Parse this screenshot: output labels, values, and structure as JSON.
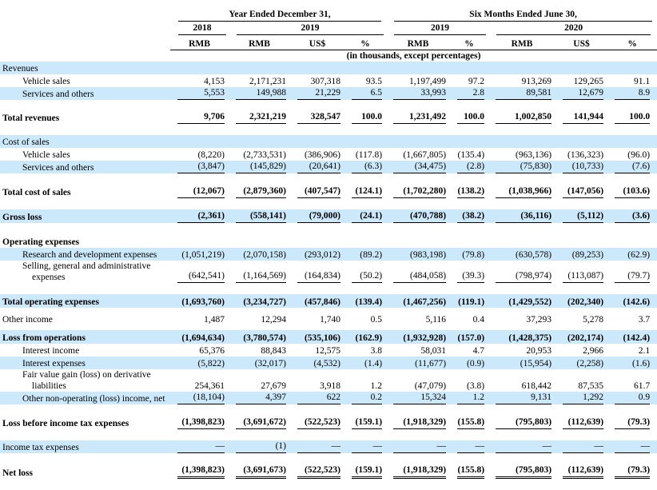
{
  "colors": {
    "highlight": "#cce9fb",
    "rule": "#000000",
    "text": "#000000"
  },
  "table": {
    "header": {
      "group1": "Year Ended December 31,",
      "group2": "Six Months Ended June 30,",
      "years": [
        "2018",
        "2019",
        "2019",
        "2020"
      ],
      "currencies": [
        "RMB",
        "RMB",
        "US$",
        "%",
        "RMB",
        "%",
        "RMB",
        "US$",
        "%"
      ],
      "note": "(in thousands, except percentages)"
    },
    "rows": [
      {
        "label": "Revenues",
        "hl": true
      },
      {
        "label": "Vehicle sales",
        "ind": 1,
        "cells": [
          "4,153",
          "2,171,231",
          "307,318",
          "93.5",
          "1,197,499",
          "97.2",
          "913,269",
          "129,265",
          "91.1"
        ]
      },
      {
        "label": "Services and others",
        "ind": 1,
        "hl": true,
        "u": "s",
        "cells": [
          "5,553",
          "149,988",
          "21,229",
          "6.5",
          "33,993",
          "2.8",
          "89,581",
          "12,679",
          "8.9"
        ]
      },
      {
        "spacer": 13
      },
      {
        "label": "Total revenues",
        "bold": true,
        "u": "s",
        "cells": [
          "9,706",
          "2,321,219",
          "328,547",
          "100.0",
          "1,231,492",
          "100.0",
          "1,002,850",
          "141,944",
          "100.0"
        ]
      },
      {
        "spacer": 14
      },
      {
        "label": "Cost of sales",
        "hl": true
      },
      {
        "label": "Vehicle sales",
        "ind": 1,
        "cells": [
          "(8,220)",
          "(2,733,531)",
          "(386,906)",
          "(117.8)",
          "(1,667,805)",
          "(135.4)",
          "(963,136)",
          "(136,323)",
          "(96.0)"
        ]
      },
      {
        "label": "Services and others",
        "ind": 1,
        "hl": true,
        "u": "s",
        "cells": [
          "(3,847)",
          "(145,829)",
          "(20,641)",
          "(6.3)",
          "(34,475)",
          "(2.8)",
          "(75,830)",
          "(10,733)",
          "(7.6)"
        ]
      },
      {
        "spacer": 14
      },
      {
        "label": "Total cost of sales",
        "bold": true,
        "u": "s",
        "cells": [
          "(12,067)",
          "(2,879,360)",
          "(407,547)",
          "(124.1)",
          "(1,702,280)",
          "(138.2)",
          "(1,038,966)",
          "(147,056)",
          "(103.6)"
        ]
      },
      {
        "spacer": 14
      },
      {
        "label": "Gross loss",
        "bold": true,
        "hl": true,
        "u": "s",
        "cells": [
          "(2,361)",
          "(558,141)",
          "(79,000)",
          "(24.1)",
          "(470,788)",
          "(38.2)",
          "(36,116)",
          "(5,112)",
          "(3.6)"
        ]
      },
      {
        "spacer": 14
      },
      {
        "label": "Operating expenses",
        "bold": true
      },
      {
        "label": "Research and development expenses",
        "ind": 1,
        "hl": true,
        "cells": [
          "(1,051,219)",
          "(2,070,158)",
          "(293,012)",
          "(89.2)",
          "(983,198)",
          "(79.8)",
          "(630,578)",
          "(89,253)",
          "(62.9)"
        ]
      },
      {
        "lines": [
          "Selling, general and administrative",
          "expenses"
        ],
        "ind": 1,
        "u": "s",
        "cells": [
          "(642,541)",
          "(1,164,569)",
          "(164,834)",
          "(50.2)",
          "(484,058)",
          "(39.3)",
          "(798,974)",
          "(113,087)",
          "(79.7)"
        ]
      },
      {
        "spacer": 14
      },
      {
        "label": "Total operating expenses",
        "bold": true,
        "hl": true,
        "cells": [
          "(1,693,760)",
          "(3,234,727)",
          "(457,846)",
          "(139.4)",
          "(1,467,256)",
          "(119.1)",
          "(1,429,552)",
          "(202,340)",
          "(142.6)"
        ]
      },
      {
        "spacer": 6
      },
      {
        "label": "Other income",
        "cells": [
          "1,487",
          "12,294",
          "1,740",
          "0.5",
          "5,116",
          "0.4",
          "37,293",
          "5,278",
          "3.7"
        ]
      },
      {
        "spacer": 6
      },
      {
        "label": "Loss from operations",
        "bold": true,
        "hl": true,
        "cells": [
          "(1,694,634)",
          "(3,780,574)",
          "(535,106)",
          "(162.9)",
          "(1,932,928)",
          "(157.0)",
          "(1,428,375)",
          "(202,174)",
          "(142.4)"
        ]
      },
      {
        "label": "Interest income",
        "ind": 1,
        "cells": [
          "65,376",
          "88,843",
          "12,575",
          "3.8",
          "58,031",
          "4.7",
          "20,953",
          "2,966",
          "2.1"
        ]
      },
      {
        "label": "Interest expenses",
        "ind": 1,
        "hl": true,
        "cells": [
          "(5,822)",
          "(32,017)",
          "(4,532)",
          "(1.4)",
          "(11,677)",
          "(0.9)",
          "(15,954)",
          "(2,258)",
          "(1.6)"
        ]
      },
      {
        "lines": [
          "Fair value gain (loss) on derivative",
          "liabilities"
        ],
        "ind": 1,
        "cells": [
          "254,361",
          "27,679",
          "3,918",
          "1.2",
          "(47,079)",
          "(3.8)",
          "618,442",
          "87,535",
          "61.7"
        ]
      },
      {
        "label": "Other non-operating (loss) income, net",
        "ind": 1,
        "hl": true,
        "u": "s",
        "cells": [
          "(18,104)",
          "4,397",
          "622",
          "0.2",
          "15,324",
          "1.2",
          "9,131",
          "1,292",
          "0.9"
        ]
      },
      {
        "spacer": 14
      },
      {
        "label": "Loss before income tax expenses",
        "bold": true,
        "u": "s",
        "cells": [
          "(1,398,823)",
          "(3,691,672)",
          "(522,523)",
          "(159.1)",
          "(1,918,329)",
          "(155.8)",
          "(795,803)",
          "(112,639)",
          "(79.3)"
        ]
      },
      {
        "spacer": 14
      },
      {
        "label": "Income tax expenses",
        "hl": true,
        "u": "s",
        "cells": [
          "—",
          "(1)",
          "—",
          "—",
          "—",
          "—",
          "—",
          "—",
          "—"
        ]
      },
      {
        "spacer": 14
      },
      {
        "label": "Net loss",
        "bold": true,
        "u": "d",
        "cells": [
          "(1,398,823)",
          "(3,691,673)",
          "(522,523)",
          "(159.1)",
          "(1,918,329)",
          "(155.8)",
          "(795,803)",
          "(112,639)",
          "(79.3)"
        ]
      }
    ]
  }
}
